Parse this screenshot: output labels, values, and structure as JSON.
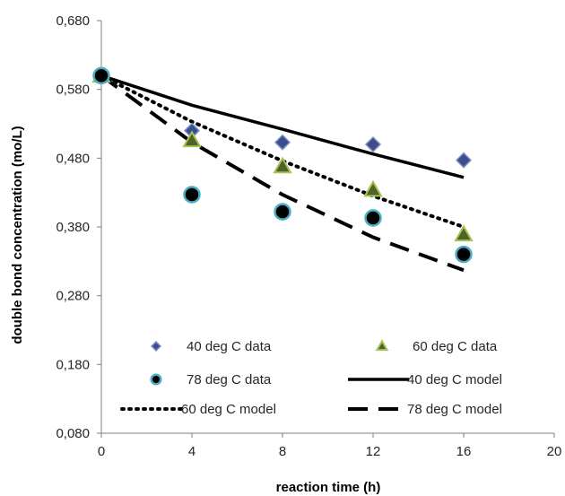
{
  "chart_data": {
    "type": "scatter",
    "xlabel": "reaction time (h)",
    "ylabel": "double bond concentration (mo/L)",
    "xlim": [
      0,
      20
    ],
    "ylim": [
      0.08,
      0.68
    ],
    "x_ticks": [
      "0",
      "4",
      "8",
      "12",
      "16",
      "20"
    ],
    "y_ticks": [
      "0,080",
      "0,180",
      "0,280",
      "0,380",
      "0,480",
      "0,580",
      "0,680"
    ],
    "grid": false,
    "legend_position": "bottom",
    "series": [
      {
        "name": "40 deg C data",
        "kind": "data",
        "marker": "diamond",
        "color": "#3b4e8c",
        "x": [
          0,
          4,
          8,
          12,
          16
        ],
        "y": [
          0.6,
          0.52,
          0.503,
          0.5,
          0.477
        ]
      },
      {
        "name": "60 deg C data",
        "kind": "data",
        "marker": "triangle",
        "color": "#7f9a3c",
        "x": [
          0,
          4,
          8,
          12,
          16
        ],
        "y": [
          0.6,
          0.506,
          0.468,
          0.434,
          0.369
        ]
      },
      {
        "name": "78 deg C data",
        "kind": "data",
        "marker": "circle",
        "color": "#000000",
        "edge": "#4bacc6",
        "x": [
          0,
          4,
          8,
          12,
          16
        ],
        "y": [
          0.6,
          0.427,
          0.402,
          0.393,
          0.34
        ]
      },
      {
        "name": "40 deg C model",
        "kind": "model",
        "style": "solid",
        "color": "#000000",
        "x": [
          0,
          4,
          8,
          12,
          16
        ],
        "y": [
          0.6,
          0.557,
          0.522,
          0.486,
          0.452
        ]
      },
      {
        "name": "60 deg C model",
        "kind": "model",
        "style": "dotted",
        "color": "#000000",
        "x": [
          0,
          4,
          8,
          12,
          16
        ],
        "y": [
          0.6,
          0.533,
          0.476,
          0.425,
          0.38
        ]
      },
      {
        "name": "78 deg C model",
        "kind": "model",
        "style": "dashed",
        "color": "#000000",
        "x": [
          0,
          4,
          8,
          12,
          16
        ],
        "y": [
          0.6,
          0.503,
          0.427,
          0.365,
          0.317
        ]
      }
    ]
  }
}
